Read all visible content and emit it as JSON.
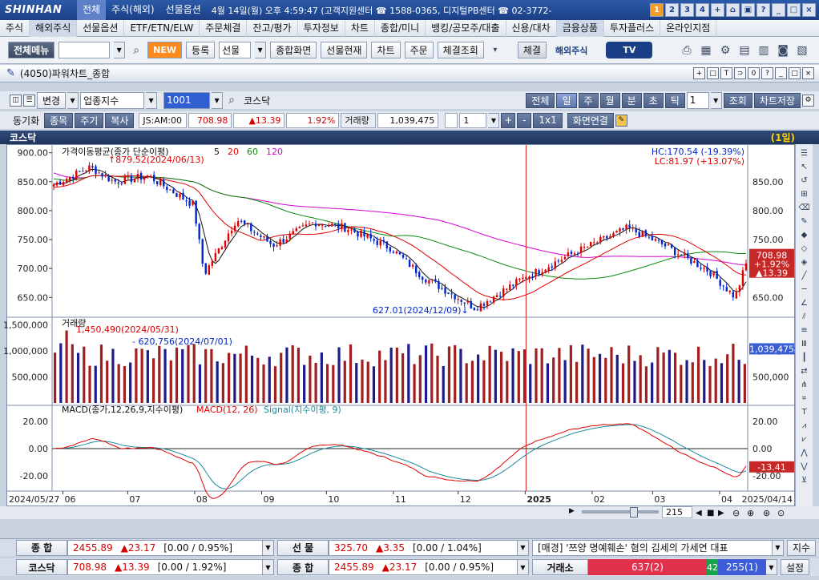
{
  "titlebar": {
    "logo": "SHINHAN",
    "menus": [
      "전체",
      "주식(해외)",
      "선물옵션"
    ],
    "info": "4월 14일(월) 오후 4:59:47 (고객지원센터 ☎ 1588-0365, 디지털PB센터 ☎ 02-3772-",
    "page_buttons": [
      "1",
      "2",
      "3",
      "4",
      "+"
    ]
  },
  "menubar": {
    "items": [
      "주식",
      "해외주식",
      "선물옵션",
      "ETF/ETN/ELW",
      "주문체결",
      "잔고/평가",
      "투자정보",
      "차트",
      "종합/미니",
      "뱅킹/공모주/대출",
      "신용/대차",
      "금융상품",
      "투자플러스",
      "온라인지점"
    ]
  },
  "toolbar": {
    "all_menu": "전체메뉴",
    "new_badge": "NEW",
    "register": "등록",
    "combo_value": "선물",
    "buttons": [
      "종합화면",
      "선물현재",
      "차트",
      "주문",
      "체결조회"
    ],
    "execution": "체결",
    "overseas": "해외주식",
    "tv": "TV"
  },
  "window": {
    "title": "(4050)파워차트_종합"
  },
  "controls1": {
    "change": "변경",
    "category": "업종지수",
    "code": "1001",
    "name": "코스닥",
    "periods": [
      "전체",
      "일",
      "주",
      "월",
      "분",
      "초",
      "틱"
    ],
    "period_value": "1",
    "query": "조회",
    "save": "차트저장"
  },
  "controls2": {
    "sync": "동기화",
    "tabs": [
      "종목",
      "주기",
      "복사"
    ],
    "time": "JS:AM:00",
    "price": "708.98",
    "change": "▲13.39",
    "pct": "1.92%",
    "volume_label": "거래량",
    "volume": "1,039,475",
    "count": "1",
    "layout": "1x1",
    "link": "화면연결"
  },
  "chartbar": {
    "name": "코스닥",
    "period": "(1일)"
  },
  "chart_data": [
    {
      "type": "candlestick",
      "title": "가격이동평균(종가 단순이평) 5 20 60 120",
      "ma_labels": [
        "5",
        "20",
        "60",
        "120"
      ],
      "ylim": [
        620,
        905
      ],
      "yticks": [
        "900.00",
        "850.00",
        "800.00",
        "750.00",
        "700.00",
        "650.00"
      ],
      "yticks_right": [
        "850.00",
        "800.00",
        "750.00",
        "700.00",
        "650.00"
      ],
      "hc": "HC:170.54 (-19.39%)",
      "lc": "LC:81.97 (+13.07%)",
      "high_annotation": "879.52(2024/06/13)",
      "low_annotation": "627.01(2024/12/09)",
      "last_price": "708.98",
      "last_pct": "+1.92%",
      "last_change": "▲13.39",
      "points": [
        [
          "2024-05-27",
          845
        ],
        [
          "2024-06-13",
          875
        ],
        [
          "2024-06-24",
          850
        ],
        [
          "2024-07-10",
          860
        ],
        [
          "2024-07-31",
          810
        ],
        [
          "2024-08-05",
          690
        ],
        [
          "2024-08-20",
          785
        ],
        [
          "2024-09-06",
          740
        ],
        [
          "2024-09-25",
          780
        ],
        [
          "2024-10-10",
          770
        ],
        [
          "2024-10-31",
          735
        ],
        [
          "2024-11-15",
          685
        ],
        [
          "2024-12-09",
          632
        ],
        [
          "2024-12-30",
          680
        ],
        [
          "2025-01-20",
          720
        ],
        [
          "2025-02-18",
          770
        ],
        [
          "2025-03-07",
          740
        ],
        [
          "2025-03-28",
          695
        ],
        [
          "2025-04-09",
          650
        ],
        [
          "2025-04-14",
          708.98
        ]
      ]
    },
    {
      "type": "bar",
      "title": "거래량",
      "yticks": [
        "1,500,000",
        "1,000,000",
        "500,000"
      ],
      "max_annotation": "1,450,490(2024/05/31)",
      "min_annotation": "620,756(2024/07/01)",
      "last_value": "1,039,475"
    },
    {
      "type": "line",
      "title": "MACD(종가,12,26,9,지수이평)",
      "series_labels": [
        "MACD(12, 26)",
        "Signal(지수이평, 9)"
      ],
      "yticks": [
        "20.00",
        "0.00",
        "-20.00"
      ],
      "last_value": "-13.41"
    }
  ],
  "xaxis": {
    "start": "2024/05/27",
    "end": "2025/04/14",
    "ticks": [
      "06",
      "07",
      "08",
      "09",
      "10",
      "11",
      "12",
      "2025",
      "02",
      "03",
      "04"
    ]
  },
  "scroll": {
    "zoom": "215"
  },
  "ticker1": {
    "items": [
      {
        "label": "종 합",
        "price": "2455.89",
        "chg": "▲23.17",
        "vol": "[0.00 / 0.95%]"
      },
      {
        "label": "선 물",
        "price": "325.70",
        "chg": "▲3.35",
        "vol": "[0.00 / 1.04%]"
      }
    ],
    "news": "[매경] '쯔양 명예훼손' 혐의 김세의 가세연 대표",
    "index_btn": "지수"
  },
  "ticker2": {
    "items": [
      {
        "label": "코스닥",
        "price": "708.98",
        "chg": "▲13.39",
        "vol": "[0.00 / 1.92%]"
      },
      {
        "label": "종 합",
        "price": "2455.89",
        "chg": "▲23.17",
        "vol": "[0.00 / 0.95%]"
      }
    ],
    "exchange_label": "거래소",
    "up_count": "637(2)",
    "flat_count": "42",
    "down_count": "255(1)",
    "settings": "설정"
  }
}
